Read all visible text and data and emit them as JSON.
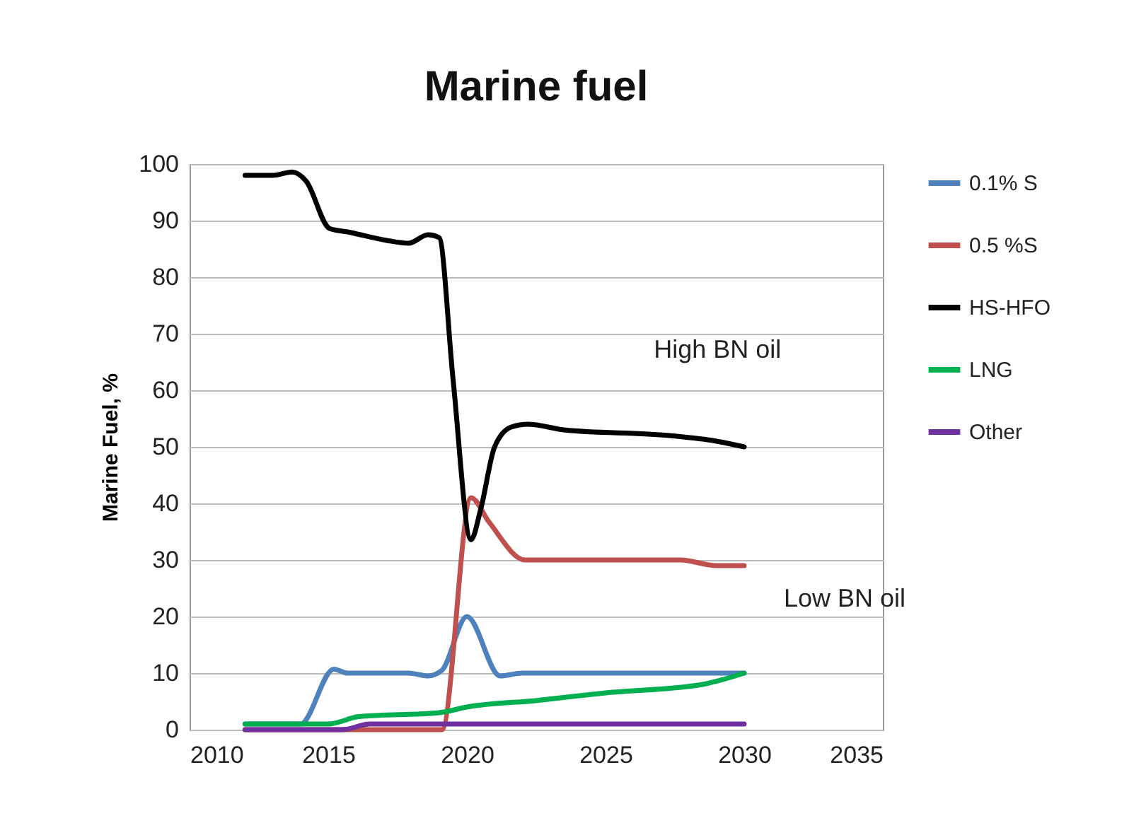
{
  "chart_data": {
    "type": "line",
    "title": "Marine fuel",
    "ylabel": "Marine Fuel, %",
    "xlim": [
      2010,
      2035
    ],
    "xticks": [
      2010,
      2015,
      2020,
      2025,
      2030,
      2035
    ],
    "ylim": [
      0,
      100
    ],
    "yticks": [
      0,
      10,
      20,
      30,
      40,
      50,
      60,
      70,
      80,
      90,
      100
    ],
    "grid": "y",
    "legend": "right",
    "line_style": "solid",
    "marker": "none",
    "annotations": [
      {
        "text": "High BN oil",
        "x": 2027.1,
        "y": 52.5
      },
      "Low BN oil"
    ],
    "series": [
      {
        "name": "0.1% S",
        "color": "#4f81bd",
        "x": [
          2012,
          2014,
          2015.2,
          2015.7,
          2017.9,
          2018.6,
          2019.1,
          2020,
          2021.2,
          2022,
          2030
        ],
        "values": [
          1,
          1,
          10.7,
          10,
          10,
          9.5,
          10.5,
          20,
          9.5,
          10,
          10
        ]
      },
      {
        "name": "0.5 %S",
        "color": "#c0504d",
        "x": [
          2012,
          2019.1,
          2020.15,
          2020.8,
          2022.1,
          2023.5,
          2027.7,
          2029,
          2030
        ],
        "values": [
          0,
          0,
          41,
          36.7,
          30,
          30,
          30,
          29,
          29
        ]
      },
      {
        "name": "HS-HFO",
        "color": "#000000",
        "x": [
          2012,
          2013,
          2013.7,
          2014.2,
          2015.05,
          2015.7,
          2017.1,
          2017.9,
          2018.6,
          2019,
          2019.5,
          2020.15,
          2020.5,
          2021,
          2021.6,
          2022.2,
          2023.5,
          2027.3,
          2029,
          2030
        ],
        "values": [
          98,
          98,
          98.6,
          97,
          88.6,
          88,
          86.5,
          86,
          87.5,
          87,
          62,
          33.6,
          39,
          50,
          53.5,
          54,
          53,
          52,
          51,
          50
        ]
      },
      {
        "name": "LNG",
        "color": "#00b050",
        "x": [
          2012,
          2015,
          2016.1,
          2019,
          2020,
          2022.6,
          2025,
          2028.5,
          2030
        ],
        "values": [
          1,
          1,
          2.3,
          3,
          4,
          5.2,
          6.5,
          8,
          10
        ]
      },
      {
        "name": "Other",
        "color": "#7030a0",
        "x": [
          2012,
          2015.5,
          2016.5,
          2030
        ],
        "values": [
          0,
          0,
          1,
          1
        ]
      }
    ]
  }
}
